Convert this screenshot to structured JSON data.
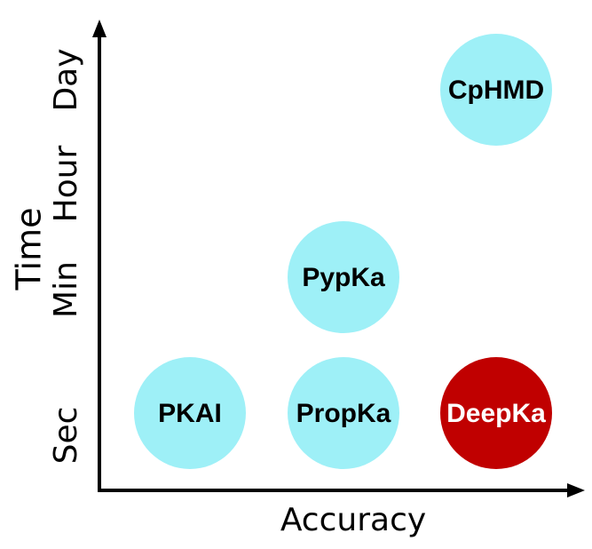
{
  "axes": {
    "x_label": "Accuracy",
    "y_label": "Time",
    "y_ticks": [
      "Sec",
      "Min",
      "Hour",
      "Day"
    ]
  },
  "colors": {
    "axis": "#000000",
    "light_circle": "#9EF0F7",
    "highlight_circle": "#C00000",
    "dark_text": "#000000",
    "light_text": "#FFFFFF"
  },
  "methods": [
    {
      "name": "PKAI",
      "accuracy_level": 1,
      "time_level": "Sec",
      "highlight": false
    },
    {
      "name": "PropKa",
      "accuracy_level": 2,
      "time_level": "Sec",
      "highlight": false
    },
    {
      "name": "DeepKa",
      "accuracy_level": 3,
      "time_level": "Sec",
      "highlight": true
    },
    {
      "name": "PypKa",
      "accuracy_level": 2,
      "time_level": "Min",
      "highlight": false
    },
    {
      "name": "CpHMD",
      "accuracy_level": 3,
      "time_level": "Day",
      "highlight": false
    }
  ]
}
